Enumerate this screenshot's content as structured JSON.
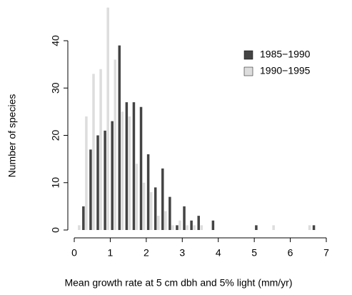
{
  "chart_data": {
    "type": "bar",
    "x_label": "Mean growth rate at 5 cm dbh and 5% light (mm/yr)",
    "y_label": "Number of species",
    "x": [
      0.2,
      0.4,
      0.6,
      0.8,
      1.0,
      1.2,
      1.4,
      1.6,
      1.8,
      2.0,
      2.2,
      2.4,
      2.6,
      2.8,
      3.0,
      3.2,
      3.4,
      3.6,
      3.8,
      4.0,
      4.2,
      4.4,
      4.6,
      4.8,
      5.0,
      5.2,
      5.4,
      5.6,
      5.8,
      6.0,
      6.2,
      6.4,
      6.6
    ],
    "series": [
      {
        "name": "1985−1990",
        "color": "#444444",
        "values": [
          5,
          17,
          20,
          21,
          23,
          39,
          27,
          27,
          26,
          16,
          9,
          13,
          7,
          1,
          5,
          2,
          3,
          0,
          2,
          0,
          0,
          0,
          0,
          0,
          1,
          0,
          0,
          0,
          0,
          0,
          0,
          0,
          1
        ]
      },
      {
        "name": "1990−1995",
        "color": "#dddddd",
        "values": [
          1,
          24,
          33,
          34,
          47,
          36,
          25,
          24,
          14,
          10,
          8,
          3,
          4,
          1,
          2,
          1,
          1,
          1,
          0,
          0,
          0,
          0,
          0,
          0,
          0,
          0,
          0,
          1,
          0,
          0,
          0,
          0,
          1
        ]
      }
    ],
    "xlim": [
      0,
      7
    ],
    "xticks": [
      0,
      1,
      2,
      3,
      4,
      5,
      6,
      7
    ],
    "ylim": [
      0,
      48
    ],
    "yticks": [
      0,
      10,
      20,
      30,
      40
    ],
    "legend": "top-right"
  }
}
